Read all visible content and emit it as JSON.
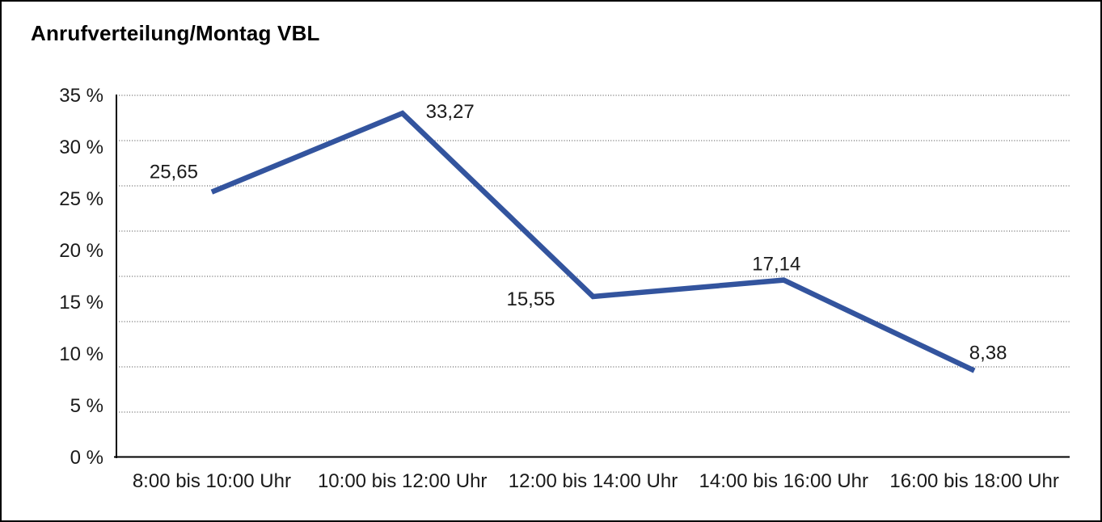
{
  "chart_data": {
    "type": "line",
    "title": "Anrufverteilung/Montag VBL",
    "categories": [
      "8:00 bis 10:00 Uhr",
      "10:00 bis 12:00 Uhr",
      "12:00 bis 14:00 Uhr",
      "14:00 bis 16:00 Uhr",
      "16:00 bis 18:00 Uhr"
    ],
    "values": [
      25.65,
      33.27,
      15.55,
      17.14,
      8.38
    ],
    "point_labels": [
      "25,65",
      "33,27",
      "15,55",
      "17,14",
      "8,38"
    ],
    "xlabel": "",
    "ylabel": "",
    "ylim": [
      0,
      35
    ],
    "y_tick_step": 5,
    "y_tick_labels": [
      "35 %",
      "30 %",
      "25 %",
      "20 %",
      "15 %",
      "10 %",
      "5 %",
      "0 %"
    ],
    "grid": "horizontal-dotted",
    "grid_divisions": 8,
    "legend": "none",
    "colors": {
      "line": "#33549E",
      "axis": "#000000",
      "grid": "#666666",
      "text": "#1a1a1a",
      "background": "#ffffff",
      "frame_border": "#000000"
    }
  }
}
